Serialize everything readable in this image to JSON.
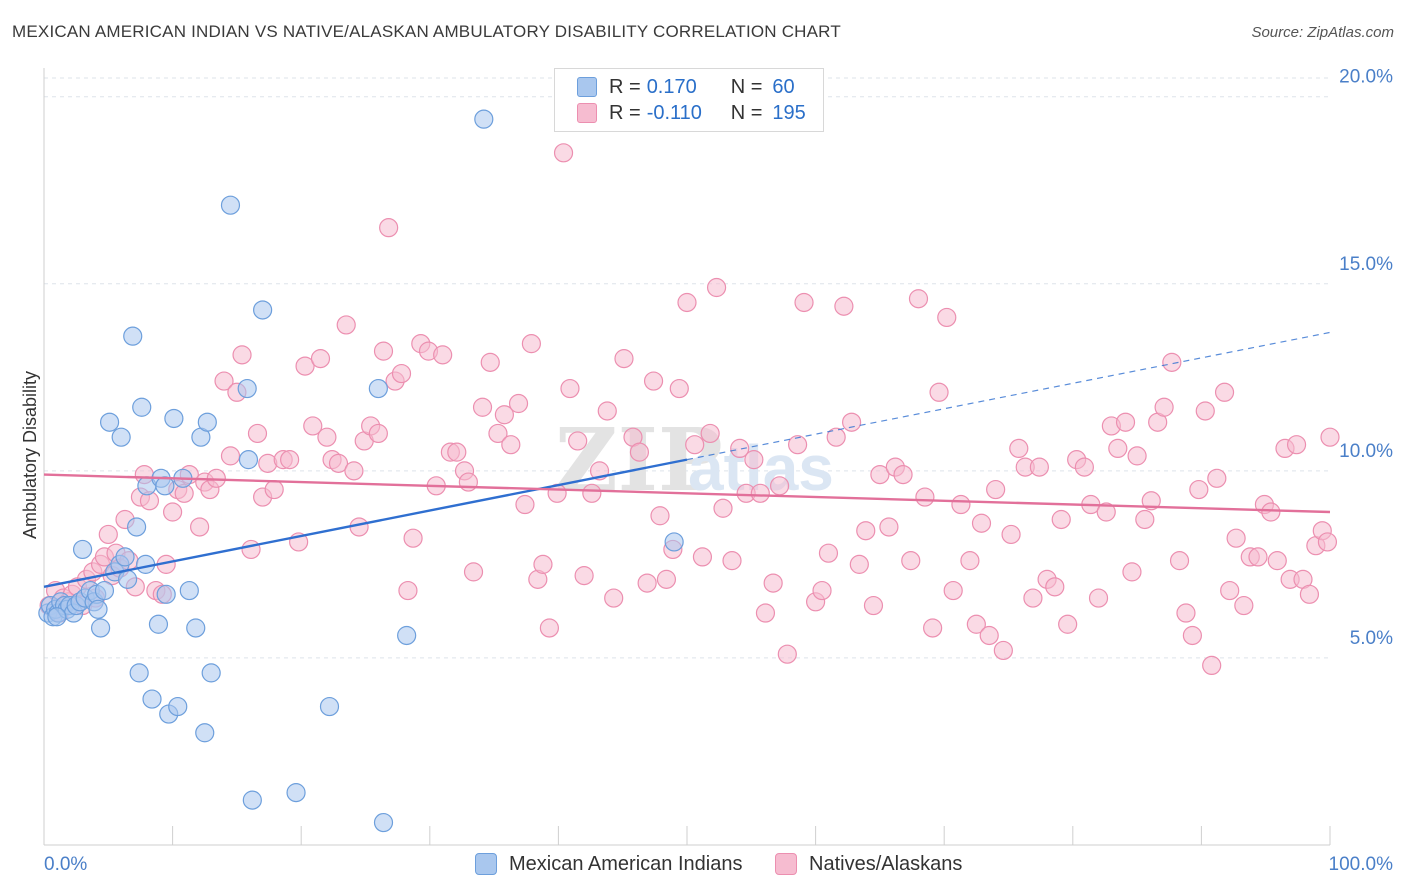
{
  "title": "MEXICAN AMERICAN INDIAN VS NATIVE/ALASKAN AMBULATORY DISABILITY CORRELATION CHART",
  "source": "Source: ZipAtlas.com",
  "watermark": {
    "zip": "ZIP",
    "atlas": "atlas"
  },
  "colors": {
    "blue_fill": "#a9c7ee",
    "blue_stroke": "#6d9fdc",
    "blue_line": "#2f6fd0",
    "pink_fill": "#f6bcd0",
    "pink_stroke": "#ec8fb0",
    "pink_line": "#e2709a",
    "tick_label": "#4a7fc8",
    "grid": "#dde3ea"
  },
  "legend": {
    "rows": [
      {
        "r_label": "R =",
        "r_value": "0.170",
        "n_label": "N =",
        "n_value": "60",
        "color": "blue"
      },
      {
        "r_label": "R =",
        "r_value": "-0.110",
        "n_label": "N =",
        "n_value": "195",
        "color": "pink"
      }
    ]
  },
  "bottom_legend": [
    "Mexican American Indians",
    "Natives/Alaskans"
  ],
  "chart_data": {
    "type": "scatter",
    "ylabel": "Ambulatory Disability",
    "xlabel": "",
    "xlim": [
      0,
      100
    ],
    "ylim": [
      0,
      20.5
    ],
    "x_tick_labels": [
      "0.0%",
      "100.0%"
    ],
    "y_ticks": [
      5,
      10,
      15,
      20
    ],
    "y_tick_labels": [
      "5.0%",
      "10.0%",
      "15.0%",
      "20.0%"
    ],
    "grid": true,
    "legend_position": "top-center",
    "series": [
      {
        "name": "Mexican American Indians",
        "color": "blue",
        "trend": {
          "x0": 0,
          "y0": 6.9,
          "x1": 50,
          "y1": 10.3,
          "dashed_to_x": 100,
          "dashed_to_y": 13.7
        },
        "points": [
          [
            0.3,
            6.2
          ],
          [
            0.5,
            6.4
          ],
          [
            0.7,
            6.1
          ],
          [
            0.9,
            6.3
          ],
          [
            1.1,
            6.2
          ],
          [
            1.3,
            6.5
          ],
          [
            1.6,
            6.4
          ],
          [
            1.8,
            6.3
          ],
          [
            2.0,
            6.4
          ],
          [
            2.3,
            6.2
          ],
          [
            2.5,
            6.4
          ],
          [
            2.8,
            6.5
          ],
          [
            3.0,
            7.9
          ],
          [
            3.2,
            6.6
          ],
          [
            3.6,
            6.8
          ],
          [
            3.9,
            6.5
          ],
          [
            4.1,
            6.7
          ],
          [
            4.2,
            6.3
          ],
          [
            4.4,
            5.8
          ],
          [
            4.7,
            6.8
          ],
          [
            5.1,
            11.3
          ],
          [
            5.5,
            7.3
          ],
          [
            5.9,
            7.5
          ],
          [
            6.0,
            10.9
          ],
          [
            6.3,
            7.7
          ],
          [
            6.5,
            7.1
          ],
          [
            6.9,
            13.6
          ],
          [
            7.2,
            8.5
          ],
          [
            7.4,
            4.6
          ],
          [
            7.6,
            11.7
          ],
          [
            7.9,
            7.5
          ],
          [
            8.0,
            9.6
          ],
          [
            8.4,
            3.9
          ],
          [
            8.9,
            5.9
          ],
          [
            9.1,
            9.8
          ],
          [
            9.5,
            6.7
          ],
          [
            9.7,
            3.5
          ],
          [
            10.1,
            11.4
          ],
          [
            10.4,
            3.7
          ],
          [
            10.8,
            9.8
          ],
          [
            11.3,
            6.8
          ],
          [
            11.8,
            5.8
          ],
          [
            12.2,
            10.9
          ],
          [
            12.5,
            3.0
          ],
          [
            12.7,
            11.3
          ],
          [
            13.0,
            4.6
          ],
          [
            14.5,
            17.1
          ],
          [
            15.8,
            12.2
          ],
          [
            15.9,
            10.3
          ],
          [
            16.2,
            1.2
          ],
          [
            17.0,
            14.3
          ],
          [
            19.6,
            1.4
          ],
          [
            22.2,
            3.7
          ],
          [
            26.0,
            12.2
          ],
          [
            26.4,
            0.6
          ],
          [
            28.2,
            5.6
          ],
          [
            34.2,
            19.4
          ],
          [
            49.0,
            8.1
          ],
          [
            9.4,
            9.6
          ],
          [
            1.0,
            6.1
          ]
        ]
      },
      {
        "name": "Natives/Alaskans",
        "color": "pink",
        "trend": {
          "x0": 0,
          "y0": 9.9,
          "x1": 100,
          "y1": 8.9
        },
        "points": [
          [
            0.4,
            6.4
          ],
          [
            0.9,
            6.8
          ],
          [
            1.2,
            6.2
          ],
          [
            1.5,
            6.6
          ],
          [
            1.9,
            6.5
          ],
          [
            2.2,
            6.7
          ],
          [
            2.6,
            6.9
          ],
          [
            3.0,
            6.4
          ],
          [
            3.3,
            7.1
          ],
          [
            3.8,
            7.3
          ],
          [
            4.0,
            6.6
          ],
          [
            4.4,
            7.5
          ],
          [
            4.7,
            7.7
          ],
          [
            5.0,
            8.3
          ],
          [
            5.3,
            7.2
          ],
          [
            5.6,
            7.8
          ],
          [
            5.9,
            7.4
          ],
          [
            6.3,
            8.7
          ],
          [
            6.6,
            7.6
          ],
          [
            7.1,
            6.9
          ],
          [
            7.5,
            9.3
          ],
          [
            7.8,
            9.9
          ],
          [
            8.2,
            9.2
          ],
          [
            8.7,
            6.8
          ],
          [
            9.2,
            6.7
          ],
          [
            9.5,
            7.5
          ],
          [
            10.0,
            8.9
          ],
          [
            10.4,
            9.5
          ],
          [
            10.9,
            9.4
          ],
          [
            11.3,
            9.9
          ],
          [
            12.1,
            8.5
          ],
          [
            12.5,
            9.7
          ],
          [
            12.9,
            9.5
          ],
          [
            13.4,
            9.8
          ],
          [
            14.0,
            12.4
          ],
          [
            14.5,
            10.4
          ],
          [
            15.0,
            12.1
          ],
          [
            15.4,
            13.1
          ],
          [
            16.1,
            7.9
          ],
          [
            16.6,
            11.0
          ],
          [
            17.0,
            9.3
          ],
          [
            17.4,
            10.2
          ],
          [
            17.9,
            9.5
          ],
          [
            18.6,
            10.3
          ],
          [
            19.1,
            10.3
          ],
          [
            19.8,
            8.1
          ],
          [
            20.3,
            12.8
          ],
          [
            20.9,
            11.2
          ],
          [
            21.5,
            13.0
          ],
          [
            22.0,
            10.9
          ],
          [
            22.4,
            10.3
          ],
          [
            22.9,
            10.2
          ],
          [
            23.5,
            13.9
          ],
          [
            24.1,
            10.0
          ],
          [
            24.5,
            8.5
          ],
          [
            24.9,
            10.8
          ],
          [
            25.4,
            11.2
          ],
          [
            26.0,
            11.0
          ],
          [
            26.4,
            13.2
          ],
          [
            26.8,
            16.5
          ],
          [
            27.3,
            12.4
          ],
          [
            27.8,
            12.6
          ],
          [
            28.3,
            6.8
          ],
          [
            28.7,
            8.2
          ],
          [
            29.3,
            13.4
          ],
          [
            29.9,
            13.2
          ],
          [
            30.5,
            9.6
          ],
          [
            31.0,
            13.1
          ],
          [
            31.6,
            10.5
          ],
          [
            32.1,
            10.5
          ],
          [
            32.7,
            10.0
          ],
          [
            33.0,
            9.7
          ],
          [
            33.4,
            7.3
          ],
          [
            34.1,
            11.7
          ],
          [
            34.7,
            12.9
          ],
          [
            35.3,
            11.0
          ],
          [
            35.8,
            11.5
          ],
          [
            36.3,
            10.7
          ],
          [
            36.9,
            11.8
          ],
          [
            37.4,
            9.1
          ],
          [
            37.9,
            13.4
          ],
          [
            38.4,
            7.1
          ],
          [
            38.8,
            7.5
          ],
          [
            39.3,
            5.8
          ],
          [
            39.9,
            9.4
          ],
          [
            40.4,
            18.5
          ],
          [
            40.9,
            12.2
          ],
          [
            41.5,
            10.8
          ],
          [
            42.0,
            7.2
          ],
          [
            42.6,
            9.4
          ],
          [
            43.2,
            10.0
          ],
          [
            43.8,
            11.6
          ],
          [
            44.3,
            6.6
          ],
          [
            45.1,
            13.0
          ],
          [
            45.8,
            10.9
          ],
          [
            46.3,
            10.5
          ],
          [
            46.9,
            7.0
          ],
          [
            47.4,
            12.4
          ],
          [
            47.9,
            8.8
          ],
          [
            48.4,
            7.1
          ],
          [
            48.9,
            7.9
          ],
          [
            49.4,
            12.2
          ],
          [
            50.0,
            14.5
          ],
          [
            50.6,
            10.7
          ],
          [
            51.2,
            7.7
          ],
          [
            51.8,
            11.0
          ],
          [
            52.3,
            14.9
          ],
          [
            52.8,
            9.0
          ],
          [
            53.5,
            7.6
          ],
          [
            54.1,
            10.6
          ],
          [
            54.6,
            9.4
          ],
          [
            55.2,
            10.3
          ],
          [
            55.7,
            9.4
          ],
          [
            56.1,
            6.2
          ],
          [
            56.7,
            7.0
          ],
          [
            57.2,
            9.6
          ],
          [
            57.8,
            5.1
          ],
          [
            58.6,
            10.7
          ],
          [
            59.1,
            14.5
          ],
          [
            60.0,
            6.5
          ],
          [
            60.5,
            6.8
          ],
          [
            61.0,
            7.8
          ],
          [
            61.6,
            10.9
          ],
          [
            62.2,
            14.4
          ],
          [
            62.8,
            11.3
          ],
          [
            63.4,
            7.5
          ],
          [
            63.9,
            8.4
          ],
          [
            64.5,
            6.4
          ],
          [
            65.0,
            9.9
          ],
          [
            65.7,
            8.5
          ],
          [
            66.2,
            10.1
          ],
          [
            66.8,
            9.9
          ],
          [
            67.4,
            7.6
          ],
          [
            68.0,
            14.6
          ],
          [
            68.5,
            9.3
          ],
          [
            69.1,
            5.8
          ],
          [
            69.6,
            12.1
          ],
          [
            70.2,
            14.1
          ],
          [
            70.7,
            6.8
          ],
          [
            71.3,
            9.1
          ],
          [
            72.0,
            7.6
          ],
          [
            72.5,
            5.9
          ],
          [
            72.9,
            8.6
          ],
          [
            73.5,
            5.6
          ],
          [
            74.0,
            9.5
          ],
          [
            74.6,
            5.2
          ],
          [
            75.2,
            8.3
          ],
          [
            75.8,
            10.6
          ],
          [
            76.3,
            10.1
          ],
          [
            76.9,
            6.6
          ],
          [
            77.4,
            10.1
          ],
          [
            78.0,
            7.1
          ],
          [
            78.6,
            6.9
          ],
          [
            79.1,
            8.7
          ],
          [
            79.6,
            5.9
          ],
          [
            80.3,
            10.3
          ],
          [
            80.9,
            10.1
          ],
          [
            81.4,
            9.1
          ],
          [
            82.0,
            6.6
          ],
          [
            82.6,
            8.9
          ],
          [
            83.0,
            11.2
          ],
          [
            83.5,
            10.6
          ],
          [
            84.1,
            11.3
          ],
          [
            84.6,
            7.3
          ],
          [
            85.0,
            10.4
          ],
          [
            85.6,
            8.7
          ],
          [
            86.1,
            9.2
          ],
          [
            86.6,
            11.3
          ],
          [
            87.1,
            11.7
          ],
          [
            87.7,
            12.9
          ],
          [
            88.3,
            7.6
          ],
          [
            88.8,
            6.2
          ],
          [
            89.3,
            5.6
          ],
          [
            89.8,
            9.5
          ],
          [
            90.3,
            11.6
          ],
          [
            90.8,
            4.8
          ],
          [
            91.2,
            9.8
          ],
          [
            91.8,
            12.1
          ],
          [
            92.2,
            6.8
          ],
          [
            92.7,
            8.2
          ],
          [
            93.3,
            6.4
          ],
          [
            93.8,
            7.7
          ],
          [
            94.4,
            7.7
          ],
          [
            94.9,
            9.1
          ],
          [
            95.4,
            8.9
          ],
          [
            95.9,
            7.6
          ],
          [
            96.5,
            10.6
          ],
          [
            96.9,
            7.1
          ],
          [
            97.4,
            10.7
          ],
          [
            97.9,
            7.1
          ],
          [
            98.4,
            6.7
          ],
          [
            98.9,
            8.0
          ],
          [
            99.4,
            8.4
          ],
          [
            99.8,
            8.1
          ],
          [
            100.0,
            10.9
          ]
        ]
      }
    ]
  }
}
